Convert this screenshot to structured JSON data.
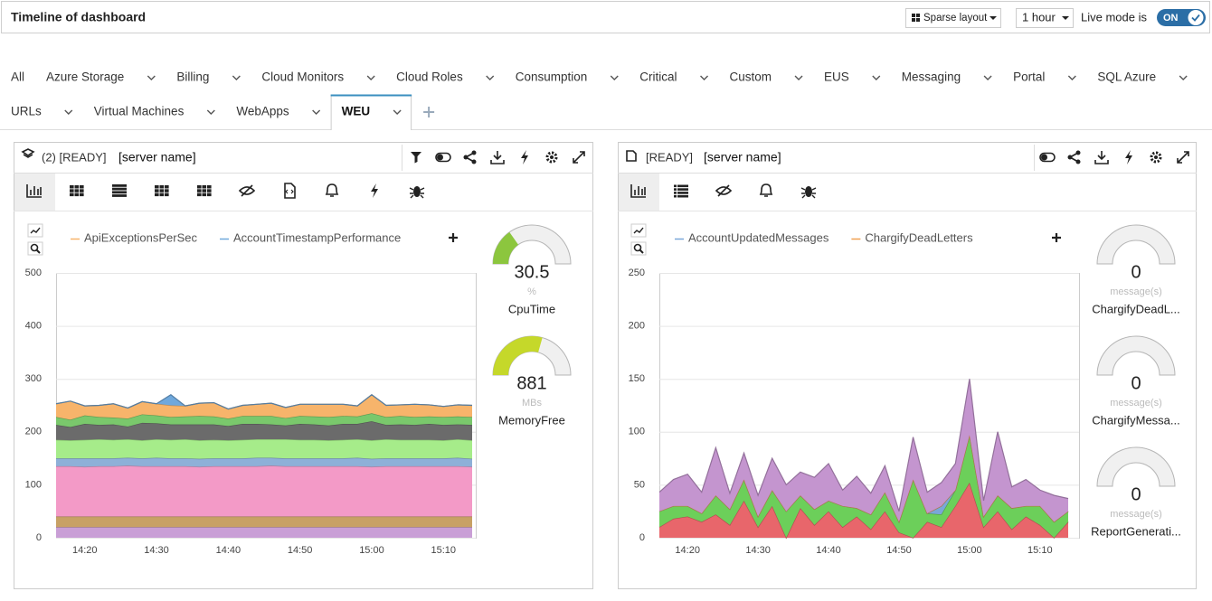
{
  "header": {
    "title": "Timeline of dashboard",
    "layout": "Sparse layout",
    "range": "1 hour",
    "live_label": "Live mode is",
    "live_state": "ON"
  },
  "tabs": {
    "items": [
      "All",
      "Azure Storage",
      "Billing",
      "Cloud Monitors",
      "Cloud Roles",
      "Consumption",
      "Critical",
      "Custom",
      "EUS",
      "Messaging",
      "Portal",
      "SQL Azure",
      "URLs",
      "Virtual Machines",
      "WebApps",
      "WEU"
    ],
    "active": 15
  },
  "panels": [
    {
      "status": "(2) [READY]",
      "server": "[server name]",
      "gauges": [
        {
          "value": 30.5,
          "unit": "%",
          "label": "CpuTime",
          "lim": [
            0,
            100
          ],
          "color": "#8cc63e"
        },
        {
          "value": 881,
          "unit": "MBs",
          "label": "MemoryFree",
          "lim": [
            0,
            1500
          ],
          "color": "#c5d82a"
        }
      ]
    },
    {
      "status": "[READY]",
      "server": "[server name]",
      "gauges": [
        {
          "value": 0,
          "unit": "message(s)",
          "label": "ChargifyDeadL...",
          "lim": [
            0,
            100
          ],
          "color": "#8cc63e"
        },
        {
          "value": 0,
          "unit": "message(s)",
          "label": "ChargifyMessa...",
          "lim": [
            0,
            100
          ],
          "color": "#8cc63e"
        },
        {
          "value": 0,
          "unit": "message(s)",
          "label": "ReportGenerati...",
          "lim": [
            0,
            100
          ],
          "color": "#8cc63e"
        }
      ]
    }
  ],
  "chart_data": [
    {
      "type": "area",
      "stacked": true,
      "grid": true,
      "ylim": [
        0,
        500
      ],
      "yticks": [
        0,
        100,
        200,
        300,
        400,
        500
      ],
      "categories": [
        null,
        null,
        "14:20",
        null,
        null,
        null,
        null,
        "14:30",
        null,
        null,
        null,
        null,
        "14:40",
        null,
        null,
        null,
        null,
        "14:50",
        null,
        null,
        null,
        null,
        "15:00",
        null,
        null,
        null,
        null,
        "15:10",
        null,
        null
      ],
      "series": [
        {
          "color": "#c99fd6",
          "values": [
            20,
            20,
            20,
            20,
            20,
            20,
            20,
            20,
            20,
            20,
            20,
            20,
            20,
            20,
            20,
            20,
            20,
            20,
            20,
            20,
            20,
            20,
            20,
            20,
            20,
            20,
            20,
            20,
            20,
            20
          ]
        },
        {
          "color": "#c8a165",
          "values": [
            20,
            20,
            20,
            20,
            20,
            20,
            20,
            20,
            20,
            20,
            20,
            20,
            20,
            20,
            20,
            20,
            20,
            20,
            20,
            20,
            20,
            20,
            20,
            20,
            20,
            20,
            20,
            20,
            20,
            20
          ]
        },
        {
          "color": "#f39ac7",
          "values": [
            95,
            95,
            94,
            95,
            95,
            96,
            95,
            95,
            95,
            95,
            94,
            95,
            95,
            95,
            95,
            96,
            95,
            95,
            95,
            95,
            95,
            95,
            94,
            95,
            95,
            95,
            95,
            95,
            95,
            94
          ]
        },
        {
          "color": "#8eb0d8",
          "values": [
            15,
            15,
            16,
            15,
            15,
            15,
            15,
            16,
            15,
            15,
            15,
            15,
            15,
            15,
            16,
            15,
            15,
            15,
            15,
            15,
            15,
            16,
            15,
            15,
            15,
            15,
            15,
            15,
            16,
            15
          ]
        },
        {
          "color": "#a6ec8a",
          "values": [
            35,
            34,
            35,
            36,
            35,
            35,
            34,
            35,
            35,
            36,
            35,
            35,
            34,
            35,
            35,
            35,
            36,
            35,
            35,
            34,
            35,
            35,
            35,
            36,
            35,
            35,
            35,
            34,
            35,
            35
          ]
        },
        {
          "color": "#6b6b6b",
          "values": [
            28,
            25,
            30,
            27,
            29,
            24,
            33,
            30,
            29,
            28,
            30,
            29,
            27,
            30,
            29,
            28,
            26,
            30,
            29,
            28,
            30,
            29,
            36,
            27,
            29,
            28,
            30,
            29,
            28,
            29
          ]
        },
        {
          "color": "#7ac86c",
          "values": [
            15,
            14,
            16,
            15,
            13,
            15,
            16,
            15,
            14,
            15,
            16,
            15,
            14,
            15,
            15,
            16,
            14,
            15,
            15,
            16,
            15,
            14,
            15,
            15,
            16,
            15,
            14,
            15,
            15,
            15
          ]
        },
        {
          "name": "ApiExceptionsPerSec",
          "color": "#f7b46b",
          "values": [
            25,
            35,
            18,
            22,
            26,
            20,
            24,
            22,
            22,
            20,
            24,
            26,
            18,
            20,
            22,
            24,
            20,
            22,
            23,
            24,
            22,
            20,
            35,
            22,
            21,
            24,
            22,
            20,
            22,
            22
          ]
        },
        {
          "name": "AccountTimestampPerformance",
          "color": "#6fa8dc",
          "values": [
            0,
            0,
            0,
            0,
            0,
            0,
            0,
            0,
            20,
            0,
            0,
            0,
            0,
            0,
            0,
            0,
            0,
            0,
            0,
            0,
            0,
            0,
            0,
            0,
            0,
            0,
            0,
            0,
            0,
            0
          ]
        }
      ]
    },
    {
      "type": "area",
      "stacked": true,
      "grid": true,
      "ylim": [
        0,
        250
      ],
      "yticks": [
        0,
        50,
        100,
        150,
        200,
        250
      ],
      "categories": [
        null,
        null,
        "14:20",
        null,
        null,
        null,
        null,
        "14:30",
        null,
        null,
        null,
        null,
        "14:40",
        null,
        null,
        null,
        null,
        "14:50",
        null,
        null,
        null,
        null,
        "15:00",
        null,
        null,
        null,
        null,
        "15:10",
        null,
        null
      ],
      "series": [
        {
          "color": "#e8666b",
          "values": [
            10,
            18,
            20,
            15,
            22,
            12,
            35,
            10,
            30,
            0,
            28,
            12,
            25,
            10,
            20,
            8,
            25,
            5,
            0,
            15,
            10,
            30,
            52,
            10,
            25,
            8,
            20,
            12,
            0,
            15
          ]
        },
        {
          "color": "#6ccf5a",
          "values": [
            15,
            12,
            10,
            8,
            18,
            15,
            20,
            10,
            15,
            25,
            12,
            15,
            10,
            20,
            8,
            14,
            18,
            10,
            55,
            8,
            12,
            15,
            45,
            10,
            15,
            20,
            10,
            18,
            15,
            10
          ]
        },
        {
          "name": "AccountUpdatedMessages",
          "color": "#7aa7d8",
          "values": [
            0,
            0,
            0,
            0,
            0,
            0,
            0,
            0,
            0,
            0,
            0,
            0,
            0,
            0,
            0,
            0,
            0,
            0,
            0,
            0,
            8,
            0,
            0,
            0,
            0,
            0,
            0,
            0,
            0,
            0
          ]
        },
        {
          "name": "ChargifyDeadLetters",
          "color": "#f0a050",
          "values": [
            0,
            0,
            0,
            0,
            0,
            0,
            0,
            0,
            0,
            0,
            0,
            0,
            0,
            0,
            0,
            0,
            0,
            0,
            0,
            0,
            0,
            0,
            0,
            0,
            0,
            0,
            0,
            0,
            0,
            0
          ]
        },
        {
          "color": "#c495cf",
          "values": [
            18,
            25,
            30,
            20,
            45,
            15,
            25,
            20,
            30,
            25,
            22,
            30,
            35,
            15,
            30,
            20,
            25,
            10,
            40,
            20,
            22,
            25,
            53,
            15,
            60,
            20,
            25,
            15,
            25,
            12
          ]
        }
      ]
    }
  ]
}
